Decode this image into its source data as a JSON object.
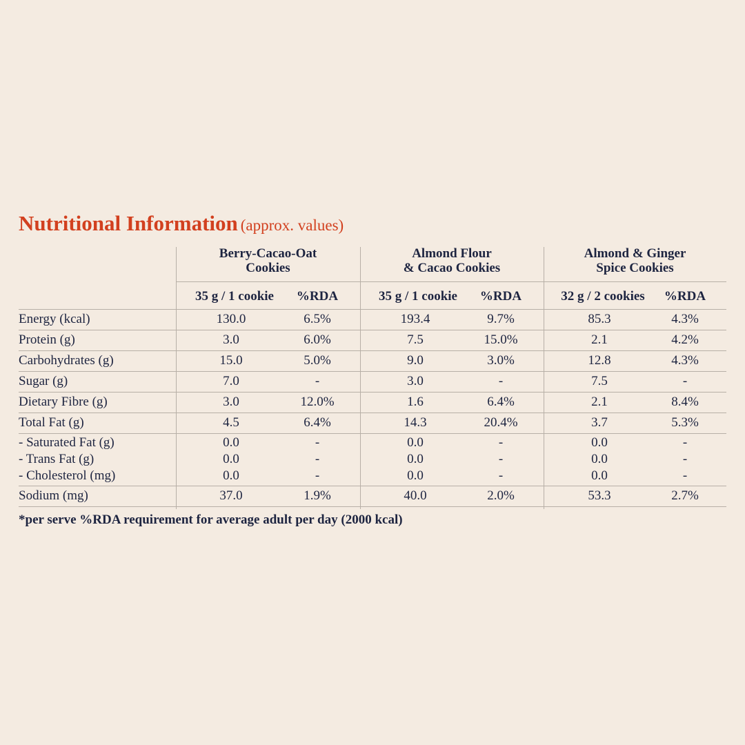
{
  "title": "Nutritional Information",
  "subtitle": "(approx. values)",
  "table": {
    "products": [
      {
        "name_lines": [
          "Berry-Cacao-Oat",
          "Cookies"
        ],
        "serving": "35 g / 1 cookie",
        "rda_header": "%RDA"
      },
      {
        "name_lines": [
          "Almond Flour",
          "& Cacao Cookies"
        ],
        "serving": "35 g / 1 cookie",
        "rda_header": "%RDA"
      },
      {
        "name_lines": [
          "Almond & Ginger",
          "Spice Cookies"
        ],
        "serving": "32 g / 2 cookies",
        "rda_header": "%RDA"
      }
    ],
    "rows": [
      [
        {
          "label": "Energy (kcal)",
          "cells": [
            "130.0",
            "6.5%",
            "193.4",
            "9.7%",
            "85.3",
            "4.3%"
          ]
        }
      ],
      [
        {
          "label": "Protein (g)",
          "cells": [
            "3.0",
            "6.0%",
            "7.5",
            "15.0%",
            "2.1",
            "4.2%"
          ]
        }
      ],
      [
        {
          "label": "Carbohydrates (g)",
          "cells": [
            "15.0",
            "5.0%",
            "9.0",
            "3.0%",
            "12.8",
            "4.3%"
          ]
        }
      ],
      [
        {
          "label": "Sugar (g)",
          "cells": [
            "7.0",
            "-",
            "3.0",
            "-",
            "7.5",
            "-"
          ]
        }
      ],
      [
        {
          "label": "Dietary Fibre (g)",
          "cells": [
            "3.0",
            "12.0%",
            "1.6",
            "6.4%",
            "2.1",
            "8.4%"
          ]
        }
      ],
      [
        {
          "label": "Total Fat (g)",
          "cells": [
            "4.5",
            "6.4%",
            "14.3",
            "20.4%",
            "3.7",
            "5.3%"
          ]
        }
      ],
      [
        {
          "label": "- Saturated Fat (g)",
          "cells": [
            "0.0",
            "-",
            "0.0",
            "-",
            "0.0",
            "-"
          ]
        },
        {
          "label": "- Trans Fat (g)",
          "cells": [
            "0.0",
            "-",
            "0.0",
            "-",
            "0.0",
            "-"
          ]
        },
        {
          "label": "- Cholesterol (mg)",
          "cells": [
            "0.0",
            "-",
            "0.0",
            "-",
            "0.0",
            "-"
          ]
        }
      ],
      [
        {
          "label": "Sodium (mg)",
          "cells": [
            "37.0",
            "1.9%",
            "40.0",
            "2.0%",
            "53.3",
            "2.7%"
          ]
        }
      ]
    ]
  },
  "footnote": "*per serve %RDA requirement for average adult per day (2000 kcal)"
}
